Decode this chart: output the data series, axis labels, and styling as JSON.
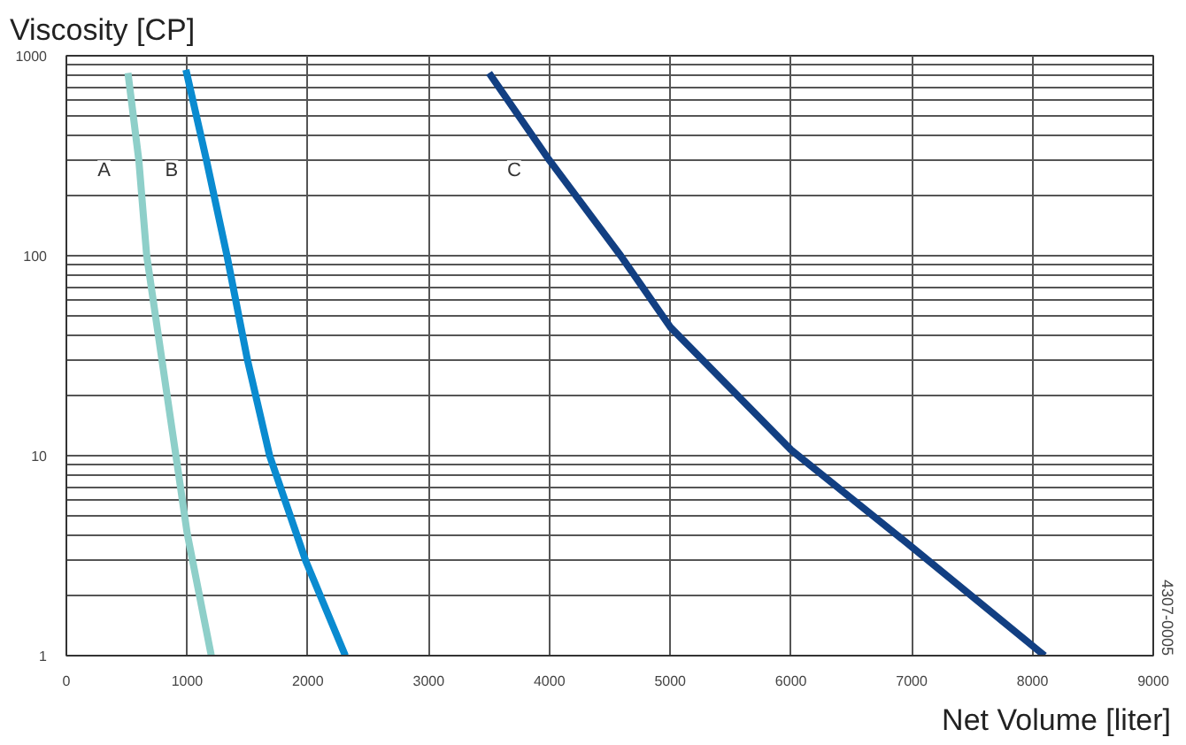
{
  "chart_data": {
    "type": "line",
    "ylabel": "Viscosity [CP]",
    "xlabel": "Net Volume [liter]",
    "log": "y",
    "xlim": [
      0,
      9000
    ],
    "xticks": [
      0,
      1000,
      2000,
      3000,
      4000,
      5000,
      6000,
      7000,
      8000,
      9000
    ],
    "ylim": [
      1,
      1000
    ],
    "yticks": [
      1,
      10,
      100,
      1000
    ],
    "grid": true,
    "series": [
      {
        "name": "A",
        "color": "#8ecfc9",
        "x": [
          510,
          600,
          665,
          907,
          1000,
          1200
        ],
        "values": [
          820,
          300,
          100,
          10,
          4.1,
          1
        ]
      },
      {
        "name": "B",
        "color": "#0a8bd0",
        "x": [
          990,
          1160,
          1330,
          1500,
          1683,
          1980,
          2310
        ],
        "values": [
          850,
          300,
          100,
          30,
          10,
          3,
          1
        ]
      },
      {
        "name": "C",
        "color": "#123f82",
        "x": [
          3500,
          4000,
          4590,
          5000,
          6000,
          7000,
          8100
        ],
        "values": [
          820,
          300,
          100,
          44,
          10.7,
          3.5,
          1
        ]
      }
    ],
    "annotations": [
      "4307-0005"
    ]
  }
}
